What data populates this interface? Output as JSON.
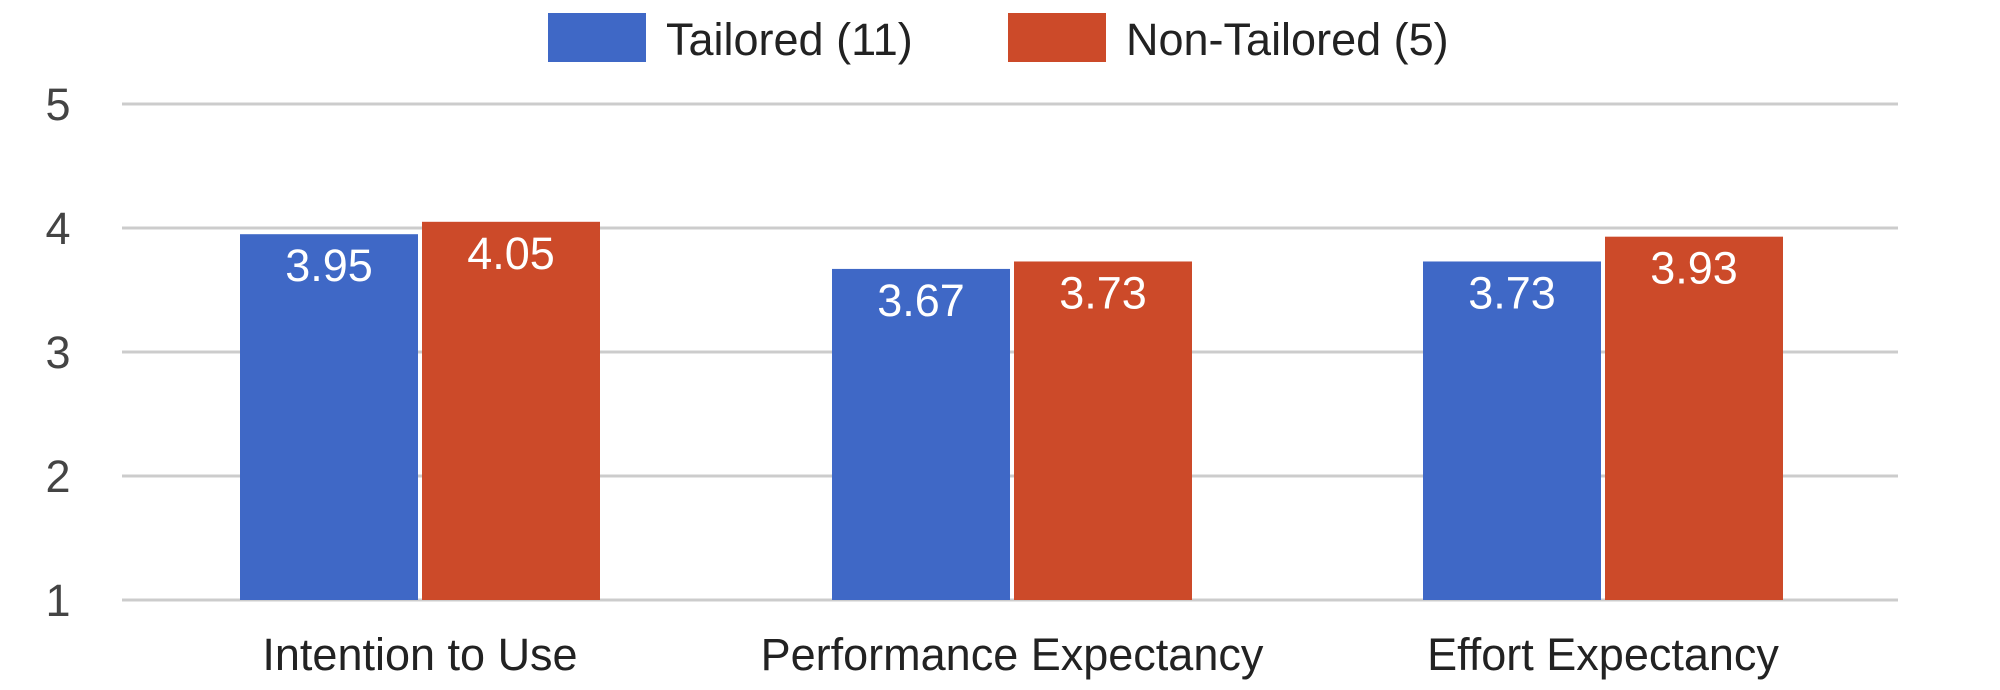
{
  "chart_data": {
    "type": "bar",
    "categories": [
      "Intention to Use",
      "Performance Expectancy",
      "Effort Expectancy"
    ],
    "series": [
      {
        "name": "Tailored (11)",
        "values": [
          3.95,
          3.67,
          3.73
        ],
        "color": "#3f68c6"
      },
      {
        "name": "Non-Tailored (5)",
        "values": [
          4.05,
          3.73,
          3.93
        ],
        "color": "#cc4a29"
      }
    ],
    "data_labels": [
      [
        "3.95",
        "3.67",
        "3.73"
      ],
      [
        "4.05",
        "3.73",
        "3.93"
      ]
    ],
    "yticks": [
      "1",
      "2",
      "3",
      "4",
      "5"
    ],
    "ylim": [
      1,
      5
    ],
    "grid": true,
    "legend_position": "top-center",
    "title": "",
    "xlabel": "",
    "ylabel": ""
  }
}
